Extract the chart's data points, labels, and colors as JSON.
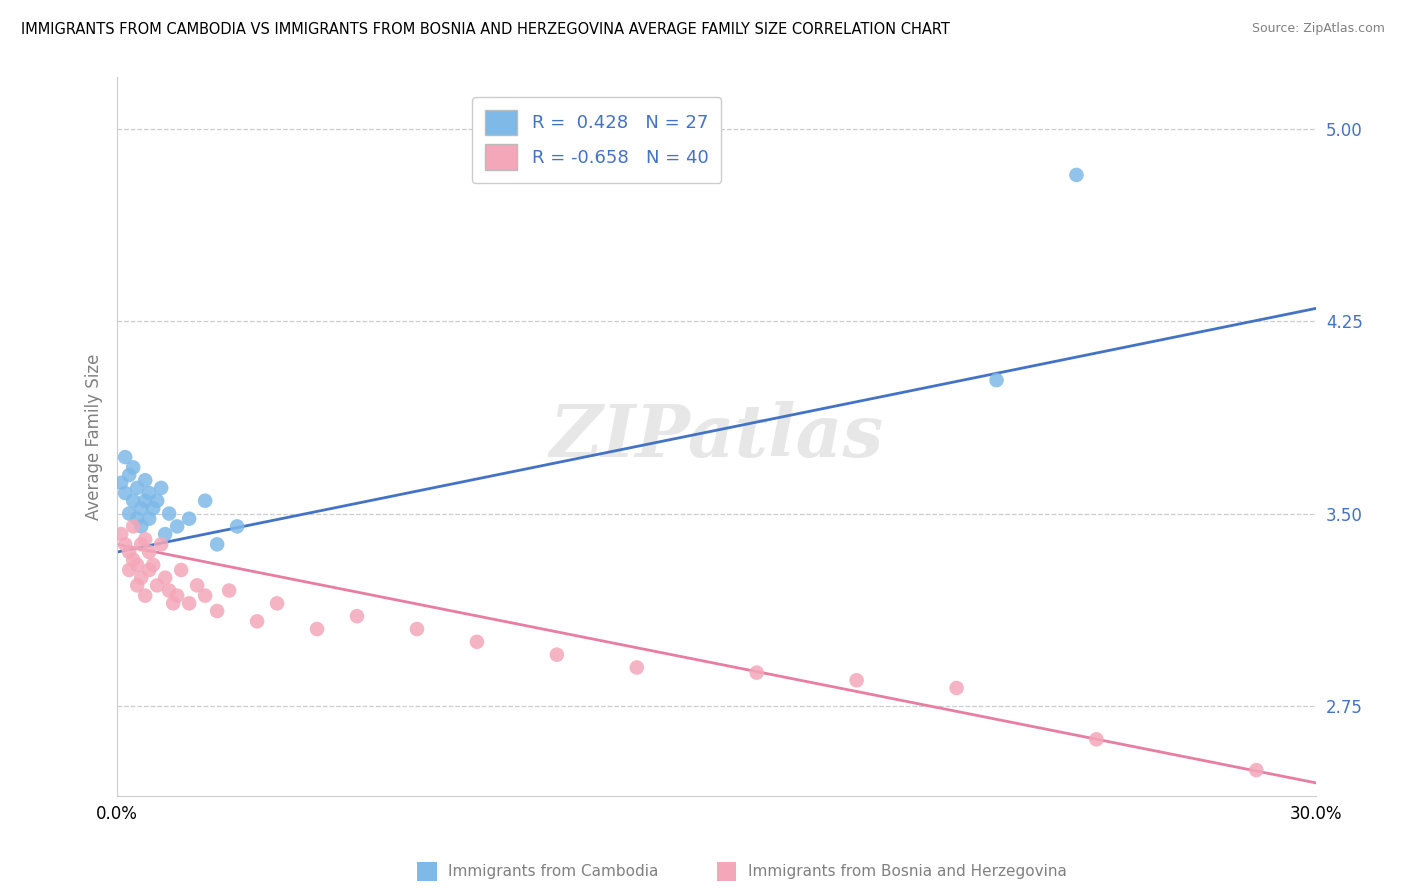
{
  "title": "IMMIGRANTS FROM CAMBODIA VS IMMIGRANTS FROM BOSNIA AND HERZEGOVINA AVERAGE FAMILY SIZE CORRELATION CHART",
  "source": "Source: ZipAtlas.com",
  "ylabel": "Average Family Size",
  "xlim": [
    0.0,
    0.3
  ],
  "ylim": [
    2.4,
    5.2
  ],
  "yticks": [
    2.75,
    3.5,
    4.25,
    5.0
  ],
  "xticks": [
    0.0,
    0.3
  ],
  "xticklabels": [
    "0.0%",
    "30.0%"
  ],
  "legend1_r": 0.428,
  "legend1_n": 27,
  "legend2_r": -0.658,
  "legend2_n": 40,
  "blue_color": "#7EB9E8",
  "pink_color": "#F4A7B9",
  "line_blue": "#4472C4",
  "line_pink": "#E87DA0",
  "watermark": "ZIPatlas",
  "bottom_label1": "Immigrants from Cambodia",
  "bottom_label2": "Immigrants from Bosnia and Herzegovina",
  "cambodia_x": [
    0.001,
    0.002,
    0.002,
    0.003,
    0.003,
    0.004,
    0.004,
    0.005,
    0.005,
    0.006,
    0.006,
    0.007,
    0.007,
    0.008,
    0.008,
    0.009,
    0.01,
    0.011,
    0.012,
    0.013,
    0.015,
    0.018,
    0.022,
    0.025,
    0.03,
    0.22,
    0.24
  ],
  "cambodia_y": [
    3.62,
    3.58,
    3.72,
    3.5,
    3.65,
    3.55,
    3.68,
    3.48,
    3.6,
    3.52,
    3.45,
    3.55,
    3.63,
    3.48,
    3.58,
    3.52,
    3.55,
    3.6,
    3.42,
    3.5,
    3.45,
    3.48,
    3.55,
    3.38,
    3.45,
    4.02,
    4.82
  ],
  "bosnia_x": [
    0.001,
    0.002,
    0.003,
    0.003,
    0.004,
    0.004,
    0.005,
    0.005,
    0.006,
    0.006,
    0.007,
    0.007,
    0.008,
    0.008,
    0.009,
    0.01,
    0.011,
    0.012,
    0.013,
    0.014,
    0.015,
    0.016,
    0.018,
    0.02,
    0.022,
    0.025,
    0.028,
    0.035,
    0.04,
    0.05,
    0.06,
    0.075,
    0.09,
    0.11,
    0.13,
    0.16,
    0.185,
    0.21,
    0.245,
    0.285
  ],
  "bosnia_y": [
    3.42,
    3.38,
    3.35,
    3.28,
    3.45,
    3.32,
    3.3,
    3.22,
    3.38,
    3.25,
    3.4,
    3.18,
    3.35,
    3.28,
    3.3,
    3.22,
    3.38,
    3.25,
    3.2,
    3.15,
    3.18,
    3.28,
    3.15,
    3.22,
    3.18,
    3.12,
    3.2,
    3.08,
    3.15,
    3.05,
    3.1,
    3.05,
    3.0,
    2.95,
    2.9,
    2.88,
    2.85,
    2.82,
    2.62,
    2.5
  ],
  "blue_regline_x0": 0.0,
  "blue_regline_y0": 3.35,
  "blue_regline_x1": 0.3,
  "blue_regline_y1": 4.3,
  "pink_regline_x0": 0.0,
  "pink_regline_y0": 3.38,
  "pink_regline_x1": 0.3,
  "pink_regline_y1": 2.45
}
